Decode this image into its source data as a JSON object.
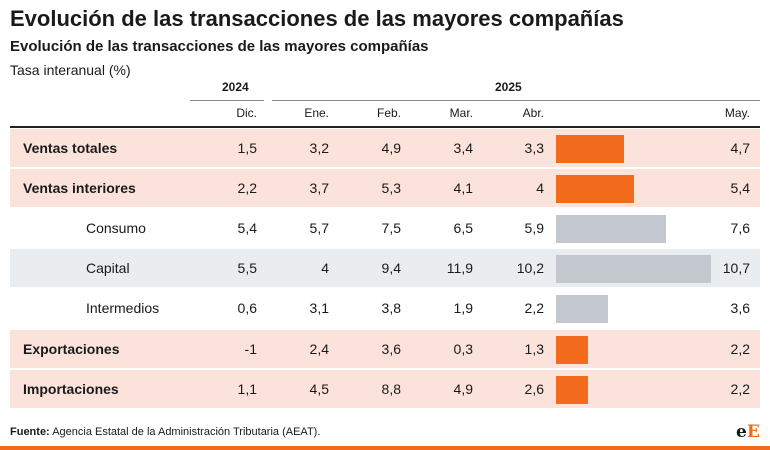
{
  "title": "Evolución de las transacciones de las mayores compañías",
  "subtitle": "Evolución de las transacciones de las mayores compañías",
  "unit": "Tasa interanual (%)",
  "years": [
    "2024",
    "2025"
  ],
  "source": {
    "label": "Fuente:",
    "text": "Agencia Estatal de la Administración Tributaria (AEAT)."
  },
  "logo": {
    "part1": "e",
    "part2": "E"
  },
  "colors": {
    "accent": "#f26b1d",
    "bar_grey": "#c3c8cf",
    "row_highlight": "#fbe3dc",
    "row_grey": "#eaedf0"
  },
  "chart_data": {
    "type": "table",
    "columns": [
      "Dic.",
      "Ene.",
      "Feb.",
      "Mar.",
      "Abr.",
      "May."
    ],
    "column_years": [
      "2024",
      "2025",
      "2025",
      "2025",
      "2025",
      "2025"
    ],
    "bar_column": "May.",
    "rows": [
      {
        "label": "Ventas totales",
        "style": "total",
        "values": [
          "1,5",
          "3,2",
          "4,9",
          "3,4",
          "3,3",
          "4,7"
        ],
        "bar_value": 4.7
      },
      {
        "label": "Ventas interiores",
        "style": "total",
        "values": [
          "2,2",
          "3,7",
          "5,3",
          "4,1",
          "4",
          "5,4"
        ],
        "bar_value": 5.4
      },
      {
        "label": "Consumo",
        "style": "sub",
        "values": [
          "5,4",
          "5,7",
          "7,5",
          "6,5",
          "5,9",
          "7,6"
        ],
        "bar_value": 7.6
      },
      {
        "label": "Capital",
        "style": "sub-grey",
        "values": [
          "5,5",
          "4",
          "9,4",
          "11,9",
          "10,2",
          "10,7"
        ],
        "bar_value": 10.7
      },
      {
        "label": "Intermedios",
        "style": "sub",
        "values": [
          "0,6",
          "3,1",
          "3,8",
          "1,9",
          "2,2",
          "3,6"
        ],
        "bar_value": 3.6
      },
      {
        "label": "Exportaciones",
        "style": "total",
        "values": [
          "-1",
          "2,4",
          "3,6",
          "0,3",
          "1,3",
          "2,2"
        ],
        "bar_value": 2.2
      },
      {
        "label": "Importaciones",
        "style": "total",
        "values": [
          "1,1",
          "4,5",
          "8,8",
          "4,9",
          "2,6",
          "2,2"
        ],
        "bar_value": 2.2
      }
    ],
    "bar_scale_max": 10.7
  }
}
